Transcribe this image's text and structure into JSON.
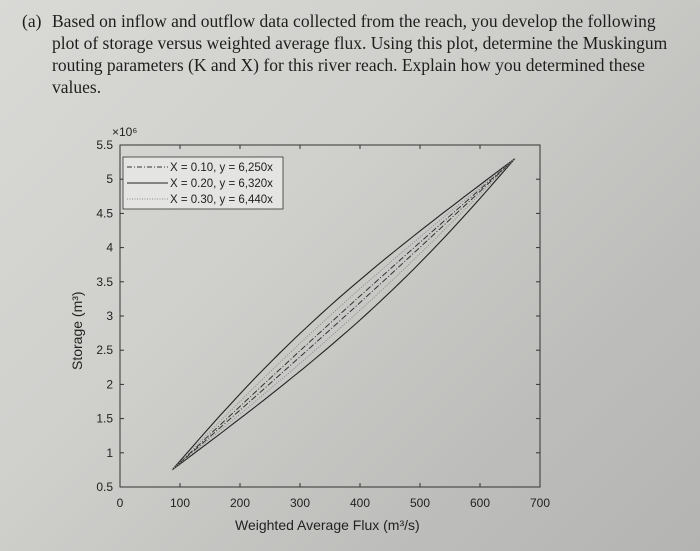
{
  "question": {
    "label": "(a)",
    "text": "Based on inflow and outflow data collected from the reach, you develop the following plot of storage versus weighted average flux. Using this plot, determine the Muskingum routing parameters (K and X) for this river reach. Explain how you determined these values."
  },
  "chart_data": {
    "type": "line",
    "title": "",
    "xlabel": "Weighted Average Flux (m³/s)",
    "ylabel": "Storage (m³)",
    "y_multiplier": "×10⁶",
    "xlim": [
      0,
      700
    ],
    "ylim": [
      0.5,
      5.5
    ],
    "xticks": [
      "0",
      "100",
      "200",
      "300",
      "400",
      "500",
      "600",
      "700"
    ],
    "yticks": [
      "0.5",
      "1",
      "1.5",
      "2",
      "2.5",
      "3",
      "3.5",
      "4",
      "4.5",
      "5",
      "5.5"
    ],
    "grid": false,
    "legend_position": "top-left",
    "series": [
      {
        "name": "X = 0.10, y = 6,250x",
        "style": "dash-dot",
        "color": "#333333",
        "loop_start": [
          87,
          0.75
        ],
        "loop_end": [
          658,
          5.3
        ],
        "loop_width_flux": 6
      },
      {
        "name": "X = 0.20, y = 6,320x",
        "style": "solid",
        "color": "#222222",
        "loop_start": [
          87,
          0.75
        ],
        "loop_end": [
          658,
          5.3
        ],
        "loop_width_flux": 38
      },
      {
        "name": "X = 0.30, y = 6,440x",
        "style": "dotted",
        "color": "#8a8a8a",
        "loop_start": [
          87,
          0.75
        ],
        "loop_end": [
          658,
          5.3
        ],
        "loop_width_flux": 20
      }
    ]
  }
}
